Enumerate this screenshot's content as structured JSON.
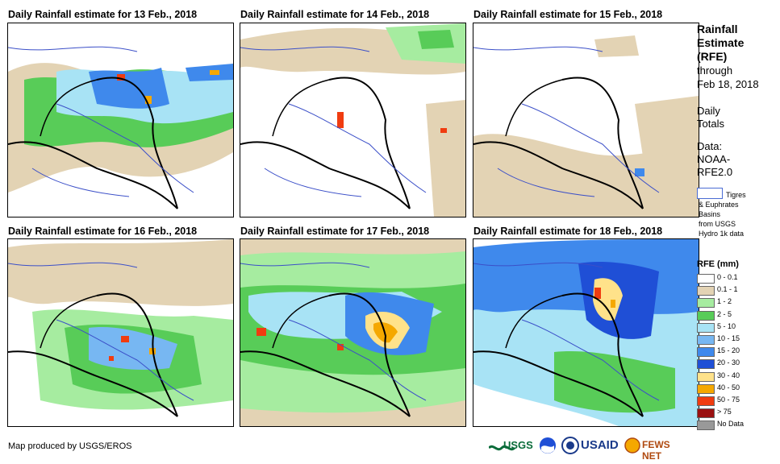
{
  "panels": [
    {
      "title": "Daily Rainfall estimate for 13 Feb., 2018"
    },
    {
      "title": "Daily Rainfall estimate for 14 Feb., 2018"
    },
    {
      "title": "Daily Rainfall estimate for 15 Feb., 2018"
    },
    {
      "title": "Daily Rainfall estimate for 16 Feb., 2018"
    },
    {
      "title": "Daily Rainfall estimate for 17 Feb., 2018"
    },
    {
      "title": "Daily Rainfall estimate for 18 Feb., 2018"
    }
  ],
  "sidebar": {
    "title_lines": [
      "Rainfall",
      "Estimate",
      "(RFE)"
    ],
    "through": "through",
    "date": "Feb 18, 2018",
    "daily": "Daily",
    "totals": "Totals",
    "data_label": "Data:",
    "data_source_1": "NOAA-",
    "data_source_2": "RFE2.0",
    "basin_line1": "Tigres",
    "basin_line2": "& Euphrates",
    "basin_line3": "Basins",
    "basin_line4": "from USGS",
    "basin_line5": "Hydro 1k data"
  },
  "legend": {
    "title": "RFE (mm)",
    "items": [
      {
        "label": "0 - 0.1",
        "color": "#ffffff"
      },
      {
        "label": "0.1 - 1",
        "color": "#e3d3b4"
      },
      {
        "label": "1 - 2",
        "color": "#a6eca0"
      },
      {
        "label": "2 - 5",
        "color": "#58cc58"
      },
      {
        "label": "5 - 10",
        "color": "#a8e3f5"
      },
      {
        "label": "10 - 15",
        "color": "#77b7f2"
      },
      {
        "label": "15 - 20",
        "color": "#3f89ec"
      },
      {
        "label": "20 - 30",
        "color": "#1f4fd6"
      },
      {
        "label": "30 - 40",
        "color": "#ffe28a"
      },
      {
        "label": "40 - 50",
        "color": "#f5a800"
      },
      {
        "label": "50 - 75",
        "color": "#f03c10"
      },
      {
        "label": "> 75",
        "color": "#9a1010"
      },
      {
        "label": "No Data",
        "color": "#999999"
      }
    ]
  },
  "credit": "Map produced by USGS/EROS",
  "logos": {
    "usgs": "USGS",
    "usaid": "USAID",
    "fewsnet": "FEWS NET"
  }
}
